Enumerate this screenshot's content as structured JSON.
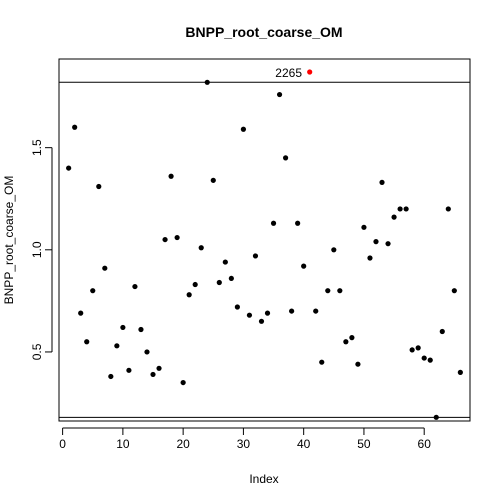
{
  "chart_data": {
    "type": "scatter",
    "title": "BNPP_root_coarse_OM",
    "xlabel": "Index",
    "ylabel": "BNPP_root_coarse_OM",
    "xlim": [
      -0.6,
      67.6
    ],
    "ylim": [
      0.162,
      1.934
    ],
    "x_ticks": [
      0,
      10,
      20,
      30,
      40,
      50,
      60
    ],
    "y_ticks": [
      0.5,
      1.0,
      1.5
    ],
    "y_tick_labels": [
      "0.5",
      "1.0",
      "1.5"
    ],
    "grid": false,
    "reference_lines_y": [
      0.18,
      1.82
    ],
    "outlier": {
      "x": 41,
      "label": "2265",
      "color": "#ff0000"
    },
    "x": [
      1,
      2,
      3,
      4,
      5,
      6,
      7,
      8,
      9,
      10,
      11,
      12,
      13,
      14,
      15,
      16,
      17,
      18,
      19,
      20,
      21,
      22,
      23,
      24,
      25,
      26,
      27,
      28,
      29,
      30,
      31,
      32,
      33,
      34,
      35,
      36,
      37,
      38,
      39,
      40,
      42,
      43,
      44,
      45,
      46,
      47,
      48,
      49,
      50,
      51,
      52,
      53,
      54,
      55,
      56,
      57,
      58,
      59,
      60,
      61,
      62,
      63,
      64,
      65,
      66
    ],
    "y": [
      1.4,
      1.6,
      0.69,
      0.55,
      0.8,
      1.31,
      0.91,
      0.38,
      0.53,
      0.62,
      0.41,
      0.82,
      0.61,
      0.5,
      0.39,
      0.42,
      1.05,
      1.36,
      1.06,
      0.35,
      0.78,
      0.83,
      1.01,
      1.82,
      1.34,
      0.84,
      0.94,
      0.86,
      0.72,
      1.59,
      0.68,
      0.97,
      0.65,
      0.69,
      1.13,
      1.76,
      1.45,
      0.7,
      1.13,
      0.92,
      0.7,
      0.45,
      0.8,
      1.0,
      0.8,
      0.55,
      0.57,
      0.44,
      1.11,
      0.96,
      1.04,
      1.33,
      1.03,
      1.16,
      1.2,
      1.2,
      0.51,
      0.52,
      0.47,
      0.46,
      0.18,
      0.6,
      1.2,
      0.8,
      0.4
    ]
  }
}
